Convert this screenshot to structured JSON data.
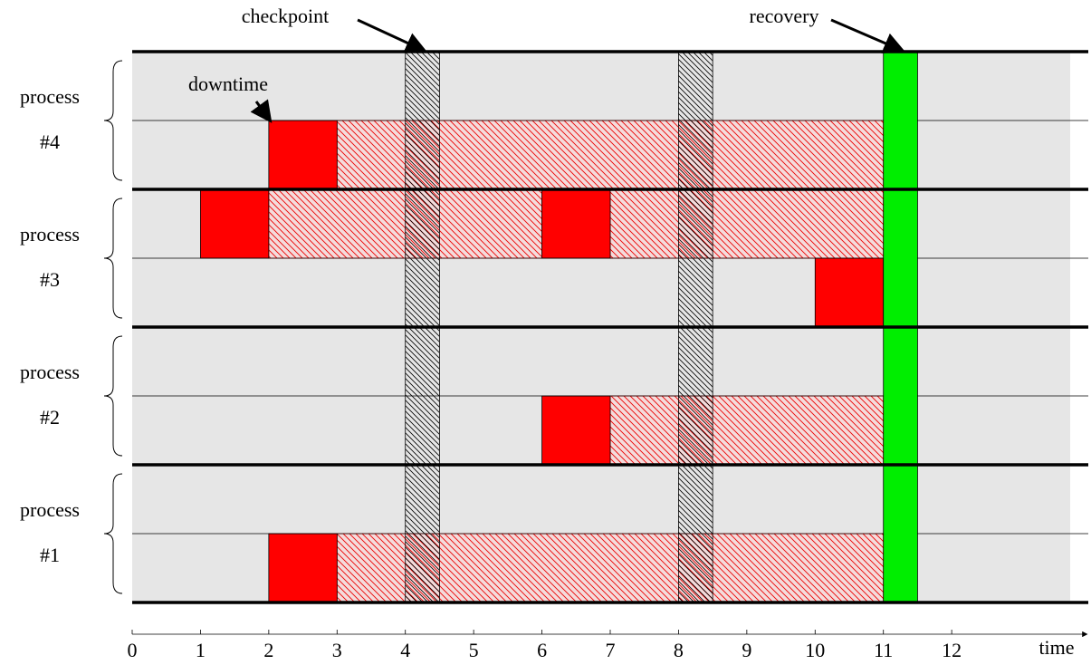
{
  "chart_data": {
    "type": "timeline",
    "xlabel": "time",
    "xlim": [
      0,
      14
    ],
    "xticks": [
      0,
      1,
      2,
      3,
      4,
      5,
      6,
      7,
      8,
      9,
      10,
      11,
      12
    ],
    "processes": [
      {
        "label": [
          "process",
          "#4"
        ],
        "lanes": [
          {
            "downtime": [],
            "lost": []
          },
          {
            "downtime": [
              [
                2,
                3
              ]
            ],
            "lost": [
              [
                3,
                11
              ]
            ]
          }
        ]
      },
      {
        "label": [
          "process",
          "#3"
        ],
        "lanes": [
          {
            "downtime": [
              [
                1,
                2
              ],
              [
                6,
                7
              ]
            ],
            "lost": [
              [
                2,
                6
              ],
              [
                7,
                11
              ]
            ]
          },
          {
            "downtime": [
              [
                10,
                11
              ]
            ],
            "lost": []
          }
        ]
      },
      {
        "label": [
          "process",
          "#2"
        ],
        "lanes": [
          {
            "downtime": [],
            "lost": []
          },
          {
            "downtime": [
              [
                6,
                7
              ]
            ],
            "lost": [
              [
                7,
                11
              ]
            ]
          }
        ]
      },
      {
        "label": [
          "process",
          "#1"
        ],
        "lanes": [
          {
            "downtime": [],
            "lost": []
          },
          {
            "downtime": [
              [
                2,
                3
              ]
            ],
            "lost": [
              [
                3,
                11
              ]
            ]
          }
        ]
      }
    ],
    "checkpoints": [
      [
        4,
        4.5
      ],
      [
        8,
        8.5
      ]
    ],
    "recovery": [
      11,
      11.5
    ],
    "annotations": [
      "checkpoint",
      "downtime",
      "recovery"
    ]
  }
}
